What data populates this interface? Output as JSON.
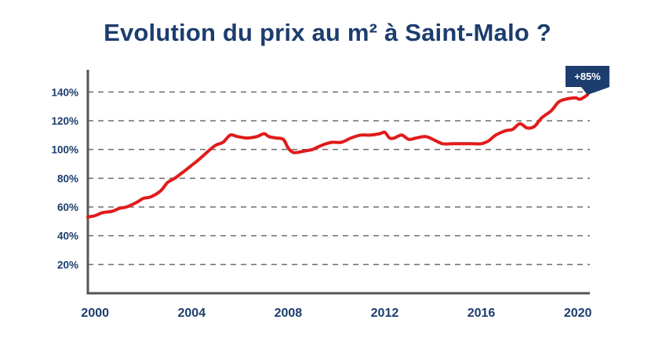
{
  "chart_data": {
    "type": "line",
    "title": "Evolution du prix au m² à Saint-Malo ?",
    "xlabel": "",
    "ylabel": "",
    "y_unit": "%",
    "xlim": [
      1999.7,
      2020.5
    ],
    "ylim": [
      0,
      150
    ],
    "y_ticks": [
      {
        "value": 20,
        "label": "20%"
      },
      {
        "value": 40,
        "label": "40%"
      },
      {
        "value": 60,
        "label": "60%"
      },
      {
        "value": 80,
        "label": "80%"
      },
      {
        "value": 100,
        "label": "100%"
      },
      {
        "value": 120,
        "label": "120%"
      },
      {
        "value": 140,
        "label": "140%"
      }
    ],
    "x_ticks": [
      {
        "value": 2000,
        "label": "2000"
      },
      {
        "value": 2004,
        "label": "2004"
      },
      {
        "value": 2008,
        "label": "2008"
      },
      {
        "value": 2012,
        "label": "2012"
      },
      {
        "value": 2016,
        "label": "2016"
      },
      {
        "value": 2020,
        "label": "2020"
      }
    ],
    "grid": "horizontal dashed",
    "colors": {
      "line": "#e01b1b",
      "text": "#1c3d6e",
      "grid": "#6e6e6e",
      "axis": "#555555",
      "badge": "#1c3d6e"
    },
    "annotation": {
      "label": "+85%",
      "x": 2020.4,
      "y": 138
    },
    "series": [
      {
        "x": [
          1999.7,
          2000.0,
          2000.3,
          2000.7,
          2001.0,
          2001.3,
          2001.7,
          2002.0,
          2002.3,
          2002.7,
          2003.0,
          2003.3,
          2003.7,
          2004.0,
          2004.3,
          2004.7,
          2005.0,
          2005.3,
          2005.6,
          2005.9,
          2006.3,
          2006.7,
          2007.0,
          2007.2,
          2007.5,
          2007.8,
          2008.0,
          2008.2,
          2008.4,
          2008.7,
          2009.0,
          2009.4,
          2009.8,
          2010.2,
          2010.6,
          2011.0,
          2011.4,
          2011.8,
          2012.0,
          2012.2,
          2012.4,
          2012.7,
          2013.0,
          2013.3,
          2013.7,
          2014.0,
          2014.4,
          2014.8,
          2015.2,
          2015.6,
          2016.0,
          2016.3,
          2016.6,
          2017.0,
          2017.3,
          2017.6,
          2017.9,
          2018.2,
          2018.5,
          2018.9,
          2019.2,
          2019.5,
          2019.9,
          2020.1,
          2020.4
        ],
        "values": [
          53,
          54,
          56,
          57,
          59,
          60,
          63,
          66,
          67,
          71,
          77,
          80,
          85,
          89,
          93,
          99,
          103,
          105,
          110,
          109,
          108,
          109,
          111,
          109,
          108,
          107,
          101,
          98,
          98,
          99,
          100,
          103,
          105,
          105,
          108,
          110,
          110,
          111,
          112,
          108,
          108,
          110,
          107,
          108,
          109,
          107,
          104,
          104,
          104,
          104,
          104,
          106,
          110,
          113,
          114,
          118,
          115,
          116,
          122,
          127,
          133,
          135,
          136,
          135,
          138
        ]
      }
    ]
  }
}
